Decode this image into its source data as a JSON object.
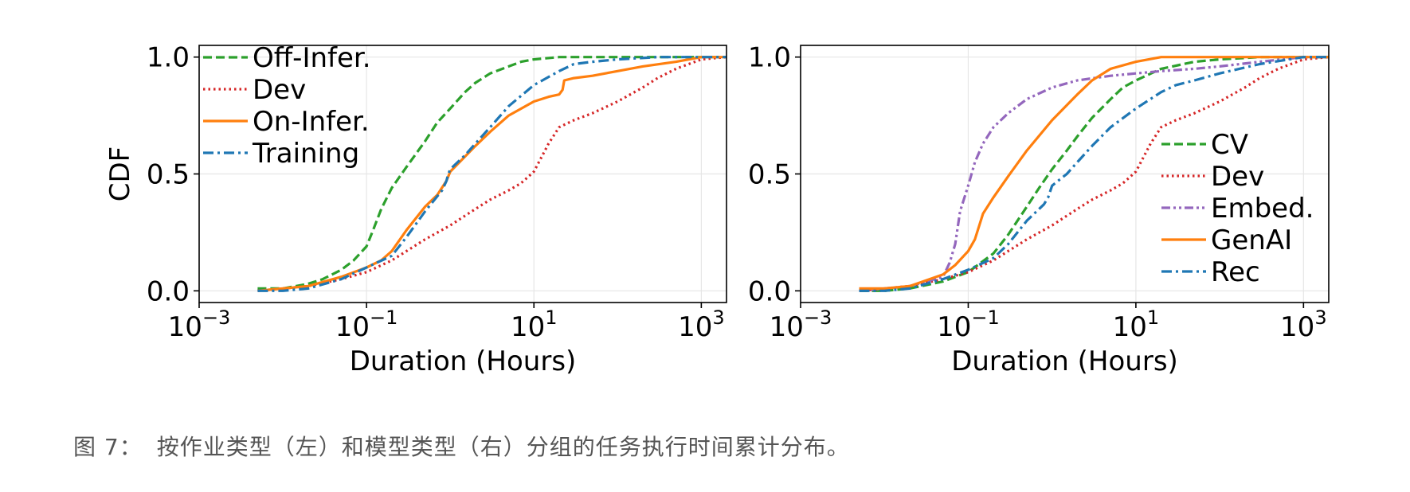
{
  "colors": {
    "green": "#2ca02c",
    "red": "#d62728",
    "orange": "#ff7f0e",
    "blue": "#1f77b4",
    "purple": "#9467bd",
    "grid": "#e6e6e6",
    "axis": "#000000"
  },
  "caption": {
    "label": "图 7：",
    "text": "按作业类型（左）和模型类型（右）分组的任务执行时间累计分布。"
  },
  "chart_data": [
    {
      "type": "line",
      "panel": "left",
      "xlabel": "Duration (Hours)",
      "ylabel": "CDF",
      "xscale": "log",
      "xlim": [
        0.001,
        2000
      ],
      "ylim": [
        -0.05,
        1.05
      ],
      "xticks": [
        {
          "value": 0.001,
          "base": "10",
          "exp": "−3"
        },
        {
          "value": 0.1,
          "base": "10",
          "exp": "−1"
        },
        {
          "value": 10,
          "base": "10",
          "exp": "1"
        },
        {
          "value": 1000,
          "base": "10",
          "exp": "3"
        }
      ],
      "yticks": [
        {
          "value": 0.0,
          "label": "0.0"
        },
        {
          "value": 0.5,
          "label": "0.5"
        },
        {
          "value": 1.0,
          "label": "1.0"
        }
      ],
      "grid": true,
      "legend_position": "top-left",
      "series": [
        {
          "name": "Off-Infer.",
          "color": "#2ca02c",
          "style": "dashed",
          "x": [
            0.005,
            0.01,
            0.02,
            0.03,
            0.05,
            0.07,
            0.1,
            0.12,
            0.15,
            0.2,
            0.3,
            0.5,
            0.7,
            1,
            1.5,
            2,
            3,
            5,
            7,
            10,
            20,
            50,
            100,
            300,
            1000,
            2000
          ],
          "y": [
            0.01,
            0.01,
            0.03,
            0.05,
            0.09,
            0.13,
            0.19,
            0.26,
            0.35,
            0.44,
            0.53,
            0.64,
            0.72,
            0.78,
            0.85,
            0.89,
            0.93,
            0.96,
            0.98,
            0.99,
            1.0,
            1.0,
            1.0,
            1.0,
            1.0,
            1.0
          ]
        },
        {
          "name": "Dev",
          "color": "#d62728",
          "style": "dotted",
          "x": [
            0.005,
            0.01,
            0.02,
            0.05,
            0.1,
            0.2,
            0.3,
            0.5,
            1,
            2,
            3,
            5,
            7,
            10,
            15,
            20,
            30,
            50,
            100,
            200,
            300,
            500,
            1000,
            2000
          ],
          "y": [
            0.0,
            0.01,
            0.02,
            0.05,
            0.08,
            0.13,
            0.17,
            0.22,
            0.28,
            0.35,
            0.39,
            0.43,
            0.46,
            0.51,
            0.63,
            0.7,
            0.73,
            0.76,
            0.81,
            0.87,
            0.91,
            0.95,
            0.99,
            1.0
          ]
        },
        {
          "name": "On-Infer.",
          "color": "#ff7f0e",
          "style": "solid",
          "x": [
            0.005,
            0.01,
            0.02,
            0.05,
            0.1,
            0.15,
            0.2,
            0.3,
            0.5,
            0.7,
            0.9,
            1,
            2,
            3,
            5,
            10,
            15,
            20,
            22,
            23,
            30,
            50,
            100,
            200,
            500,
            1000,
            2000
          ],
          "y": [
            0.0,
            0.01,
            0.02,
            0.06,
            0.1,
            0.13,
            0.17,
            0.26,
            0.36,
            0.41,
            0.47,
            0.51,
            0.62,
            0.68,
            0.75,
            0.81,
            0.83,
            0.84,
            0.86,
            0.9,
            0.91,
            0.92,
            0.94,
            0.96,
            0.98,
            1.0,
            1.0
          ]
        },
        {
          "name": "Training",
          "color": "#1f77b4",
          "style": "dashdot",
          "x": [
            0.005,
            0.01,
            0.02,
            0.05,
            0.1,
            0.2,
            0.3,
            0.5,
            0.8,
            0.9,
            0.95,
            1,
            1.5,
            2,
            3,
            5,
            10,
            20,
            30,
            50,
            100,
            300,
            1000,
            2000
          ],
          "y": [
            0.0,
            0.0,
            0.01,
            0.05,
            0.1,
            0.15,
            0.23,
            0.34,
            0.43,
            0.47,
            0.5,
            0.52,
            0.58,
            0.63,
            0.7,
            0.79,
            0.88,
            0.94,
            0.97,
            0.98,
            0.99,
            1.0,
            1.0,
            1.0
          ]
        }
      ]
    },
    {
      "type": "line",
      "panel": "right",
      "xlabel": "Duration (Hours)",
      "ylabel": "",
      "xscale": "log",
      "xlim": [
        0.001,
        2000
      ],
      "ylim": [
        -0.05,
        1.05
      ],
      "xticks": [
        {
          "value": 0.001,
          "base": "10",
          "exp": "−3"
        },
        {
          "value": 0.1,
          "base": "10",
          "exp": "−1"
        },
        {
          "value": 10,
          "base": "10",
          "exp": "1"
        },
        {
          "value": 1000,
          "base": "10",
          "exp": "3"
        }
      ],
      "yticks": [
        {
          "value": 0.0,
          "label": "0.0"
        },
        {
          "value": 0.5,
          "label": "0.5"
        },
        {
          "value": 1.0,
          "label": "1.0"
        }
      ],
      "grid": true,
      "legend_position": "center-right",
      "series": [
        {
          "name": "CV",
          "color": "#2ca02c",
          "style": "dashed",
          "x": [
            0.005,
            0.01,
            0.02,
            0.05,
            0.1,
            0.2,
            0.3,
            0.5,
            0.7,
            1,
            1.5,
            2,
            3,
            5,
            7,
            10,
            20,
            50,
            100,
            300,
            1000,
            2000
          ],
          "y": [
            0.0,
            0.0,
            0.01,
            0.04,
            0.08,
            0.16,
            0.24,
            0.36,
            0.44,
            0.52,
            0.6,
            0.66,
            0.74,
            0.82,
            0.87,
            0.9,
            0.95,
            0.98,
            0.99,
            1.0,
            1.0,
            1.0
          ]
        },
        {
          "name": "Dev",
          "color": "#d62728",
          "style": "dotted",
          "x": [
            0.005,
            0.01,
            0.02,
            0.05,
            0.1,
            0.2,
            0.3,
            0.5,
            1,
            2,
            3,
            5,
            7,
            10,
            15,
            20,
            30,
            50,
            100,
            200,
            300,
            500,
            1000,
            2000
          ],
          "y": [
            0.0,
            0.01,
            0.02,
            0.05,
            0.08,
            0.13,
            0.17,
            0.22,
            0.28,
            0.35,
            0.39,
            0.43,
            0.46,
            0.51,
            0.63,
            0.7,
            0.73,
            0.76,
            0.81,
            0.87,
            0.91,
            0.95,
            0.99,
            1.0
          ]
        },
        {
          "name": "Embed.",
          "color": "#9467bd",
          "style": "dashdotdot",
          "x": [
            0.005,
            0.01,
            0.02,
            0.05,
            0.06,
            0.07,
            0.08,
            0.1,
            0.12,
            0.15,
            0.2,
            0.3,
            0.5,
            1,
            2,
            5,
            10,
            20,
            50,
            100,
            300,
            1000,
            2000
          ],
          "y": [
            0.0,
            0.01,
            0.02,
            0.06,
            0.12,
            0.2,
            0.34,
            0.45,
            0.55,
            0.63,
            0.7,
            0.76,
            0.82,
            0.87,
            0.9,
            0.92,
            0.93,
            0.94,
            0.95,
            0.96,
            0.98,
            1.0,
            1.0
          ]
        },
        {
          "name": "GenAI",
          "color": "#ff7f0e",
          "style": "solid",
          "x": [
            0.005,
            0.01,
            0.02,
            0.05,
            0.07,
            0.1,
            0.12,
            0.15,
            0.2,
            0.3,
            0.5,
            1,
            2,
            3,
            5,
            10,
            20,
            50,
            100,
            300,
            1000,
            2000
          ],
          "y": [
            0.01,
            0.01,
            0.02,
            0.07,
            0.11,
            0.17,
            0.22,
            0.33,
            0.4,
            0.49,
            0.6,
            0.73,
            0.84,
            0.9,
            0.95,
            0.98,
            1.0,
            1.0,
            1.0,
            1.0,
            1.0,
            1.0
          ]
        },
        {
          "name": "Rec",
          "color": "#1f77b4",
          "style": "dashdot",
          "x": [
            0.005,
            0.01,
            0.02,
            0.05,
            0.1,
            0.2,
            0.3,
            0.5,
            0.8,
            0.9,
            1,
            1.5,
            2,
            3,
            5,
            10,
            20,
            30,
            50,
            100,
            300,
            1000,
            2000
          ],
          "y": [
            0.0,
            0.0,
            0.01,
            0.05,
            0.09,
            0.14,
            0.2,
            0.3,
            0.37,
            0.4,
            0.45,
            0.5,
            0.55,
            0.62,
            0.7,
            0.78,
            0.85,
            0.88,
            0.9,
            0.93,
            0.97,
            1.0,
            1.0
          ]
        }
      ]
    }
  ]
}
